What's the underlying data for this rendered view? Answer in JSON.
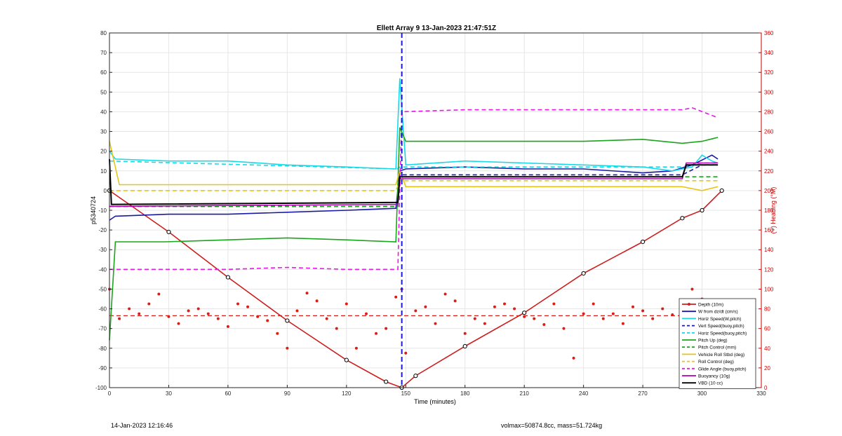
{
  "chart_data": {
    "type": "line",
    "title": "Ellett Array 9 13-Jan-2023 21:47:51Z",
    "xlabel": "Time (minutes)",
    "ylabel_left": "p5340724",
    "ylabel_right": "(+) Heading (°M)",
    "xlim": [
      0,
      330
    ],
    "ylim_left": [
      -100,
      80
    ],
    "ylim_right": [
      0,
      360
    ],
    "x_ticks": [
      "0",
      "30",
      "60",
      "90",
      "120",
      "150",
      "180",
      "210",
      "240",
      "270",
      "300",
      "330"
    ],
    "y_left_ticks": [
      "80",
      "70",
      "60",
      "50",
      "40",
      "30",
      "20",
      "10",
      "0",
      "-10",
      "-20",
      "-30",
      "-40",
      "-50",
      "-60",
      "-70",
      "-80",
      "-90",
      "-100"
    ],
    "y_right_ticks": [
      "360",
      "340",
      "320",
      "300",
      "280",
      "260",
      "240",
      "220",
      "200",
      "180",
      "160",
      "140",
      "120",
      "100",
      "80",
      "60",
      "40",
      "20",
      "0"
    ],
    "grid": true,
    "legend_position": "bottom-right",
    "apogee_marker_x": 148,
    "colors": {
      "depth": "#cc1f1f",
      "heading": "#d91e18",
      "w_dzdt": "#1a1aa6",
      "w_model": "#19d9e6",
      "pitch": "#1aa61a",
      "roll": "#e6c619",
      "glide": "#e619e6",
      "buoyancy": "#b300b3",
      "vbd": "#000000",
      "right_axis": "#cc0000"
    },
    "series": [
      {
        "name": "Depth (10m)",
        "key": "depth",
        "style": "solid-markers",
        "x": [
          0,
          30,
          60,
          90,
          120,
          140,
          148,
          155,
          180,
          210,
          240,
          270,
          290,
          300,
          310
        ],
        "y": [
          0,
          -21,
          -44,
          -66,
          -86,
          -97,
          -100,
          -94,
          -79,
          -62,
          -42,
          -26,
          -14,
          -10,
          0
        ]
      },
      {
        "name": "W from dz/dt (cm/s)",
        "key": "w_dzdt",
        "style": "solid",
        "x": [
          0,
          3,
          30,
          60,
          90,
          120,
          145,
          147,
          150,
          180,
          210,
          240,
          270,
          285,
          295,
          305,
          308
        ],
        "y": [
          -15,
          -13,
          -12,
          -12,
          -11,
          -10,
          -9,
          10,
          11,
          12,
          11,
          11,
          9,
          10,
          13,
          18,
          16
        ]
      },
      {
        "name": "Horiz Speed(W,pitch)",
        "key": "w_model",
        "style": "solid",
        "x": [
          0,
          3,
          30,
          60,
          90,
          120,
          145,
          147,
          150,
          180,
          210,
          240,
          270,
          285,
          295,
          300,
          305,
          308
        ],
        "y": [
          20,
          16,
          15,
          15,
          13,
          12,
          11,
          57,
          13,
          15,
          14,
          13,
          12,
          10,
          12,
          18,
          15,
          14
        ]
      },
      {
        "name": "Vert Speed(buoy,pitch)",
        "key": "w_dzdt",
        "style": "dashed",
        "x": [
          0,
          146,
          147,
          290,
          300,
          308
        ],
        "y": [
          -8,
          -8,
          8,
          8,
          13,
          13
        ]
      },
      {
        "name": "Horiz Speed(buoy,pitch)",
        "key": "w_model",
        "style": "dashed",
        "x": [
          0,
          146,
          147,
          290,
          300,
          308
        ],
        "y": [
          15,
          11,
          12,
          12,
          14,
          14
        ]
      },
      {
        "name": "Pitch Up (deg)",
        "key": "pitch",
        "style": "solid",
        "x": [
          0,
          3,
          28,
          60,
          90,
          120,
          145,
          147,
          150,
          180,
          210,
          240,
          270,
          290,
          300,
          308
        ],
        "y": [
          -76,
          -26,
          -26,
          -25,
          -24,
          -25,
          -26,
          32,
          25,
          25,
          25,
          25,
          26,
          24,
          25,
          27
        ]
      },
      {
        "name": "Pitch Control (mm)",
        "key": "pitch",
        "style": "dashed",
        "x": [
          0,
          146,
          147,
          308
        ],
        "y": [
          -8,
          -8,
          7,
          7
        ]
      },
      {
        "name": "Vehicle Roll Stbd (deg)",
        "key": "roll",
        "style": "solid",
        "x": [
          0,
          5,
          30,
          60,
          90,
          120,
          145,
          147,
          150,
          175,
          210,
          240,
          270,
          290,
          300,
          308
        ],
        "y": [
          25,
          3,
          3,
          3,
          3,
          3,
          3,
          10,
          2,
          2,
          2,
          2,
          2,
          2,
          0,
          2
        ]
      },
      {
        "name": "Roll Control (deg)",
        "key": "roll",
        "style": "dashed",
        "x": [
          0,
          5,
          30,
          60,
          90,
          120,
          145,
          147,
          150,
          180,
          210,
          240,
          270,
          300,
          308
        ],
        "y": [
          0,
          0,
          0,
          0,
          0,
          0,
          0,
          5,
          5,
          5,
          5,
          5,
          5,
          5,
          5
        ]
      },
      {
        "name": "Glide Angle (buoy,pitch)",
        "key": "glide",
        "style": "dashed",
        "x": [
          0,
          30,
          60,
          90,
          120,
          146,
          148,
          180,
          210,
          240,
          270,
          290,
          295,
          308
        ],
        "y": [
          -40,
          -40,
          -40,
          -39,
          -40,
          -40,
          40,
          41,
          41,
          41,
          41,
          41,
          42,
          37
        ]
      },
      {
        "name": "Buoyancy (10g)",
        "key": "buoyancy",
        "style": "solid",
        "x": [
          0,
          146,
          147,
          290,
          292,
          308
        ],
        "y": [
          -8,
          -7,
          6,
          6,
          14,
          14
        ]
      },
      {
        "name": "VBD (10 cc)",
        "key": "vbd",
        "style": "solid",
        "x": [
          0,
          1,
          146,
          147,
          290,
          292,
          308
        ],
        "y": [
          16,
          -7,
          -6,
          7,
          7,
          13,
          13
        ]
      }
    ],
    "heading": {
      "name": "Heading",
      "axis": "right",
      "target_deg": 73,
      "x": [
        0,
        5,
        10,
        15,
        20,
        25,
        30,
        35,
        40,
        45,
        50,
        55,
        60,
        65,
        70,
        75,
        80,
        85,
        90,
        95,
        100,
        105,
        110,
        115,
        120,
        125,
        130,
        135,
        140,
        145,
        148,
        150,
        155,
        160,
        165,
        170,
        175,
        180,
        185,
        190,
        195,
        200,
        205,
        210,
        215,
        220,
        225,
        230,
        235,
        240,
        245,
        250,
        255,
        260,
        265,
        270,
        275,
        280,
        285,
        290,
        295,
        300,
        305,
        308
      ],
      "y": [
        100,
        70,
        80,
        75,
        85,
        95,
        72,
        65,
        78,
        80,
        75,
        70,
        62,
        85,
        82,
        72,
        68,
        55,
        40,
        78,
        96,
        88,
        70,
        60,
        85,
        40,
        75,
        55,
        60,
        92,
        100,
        35,
        78,
        82,
        65,
        95,
        88,
        55,
        70,
        65,
        82,
        85,
        80,
        72,
        70,
        64,
        85,
        60,
        30,
        75,
        85,
        70,
        75,
        65,
        82,
        78,
        70,
        80,
        74,
        85,
        100,
        90,
        78,
        75
      ]
    },
    "legend": [
      "Depth (10m)",
      "W from dz/dt (cm/s)",
      "Horiz Speed(W,pitch)",
      "Vert Speed(buoy,pitch)",
      "Horiz Speed(buoy,pitch)",
      "Pitch Up (deg)",
      "Pitch Control (mm)",
      "Vehicle Roll Stbd (deg)",
      "Roll Control (deg)",
      "Glide Angle (buoy,pitch)",
      "Buoyancy (10g)",
      "VBD (10 cc)"
    ]
  },
  "footer": {
    "left": "14-Jan-2023 12:16:46",
    "right": "volmax=50874.8cc, mass=51.724kg"
  }
}
